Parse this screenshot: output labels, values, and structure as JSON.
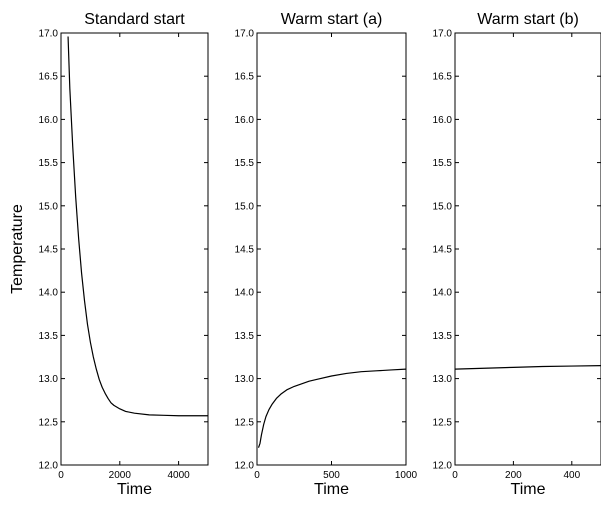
{
  "figure": {
    "ylabel": "Temperature"
  },
  "chart_data": [
    {
      "type": "line",
      "title": "Standard start",
      "xlabel": "Time",
      "ylabel": "Temperature",
      "xlim": [
        0,
        5000
      ],
      "ylim": [
        12.0,
        17.0
      ],
      "xticks": [
        0,
        2000,
        4000
      ],
      "xtick_labels": [
        "0",
        "2000",
        "4000"
      ],
      "yticks": [
        12.0,
        12.5,
        13.0,
        13.5,
        14.0,
        14.5,
        15.0,
        15.5,
        16.0,
        16.5,
        17.0
      ],
      "ytick_labels": [
        "12.0",
        "12.5",
        "13.0",
        "13.5",
        "14.0",
        "14.5",
        "15.0",
        "15.5",
        "16.0",
        "16.5",
        "17.0"
      ],
      "grid": false,
      "series": [
        {
          "color": "#000000",
          "x": [
            240,
            300,
            400,
            500,
            600,
            700,
            800,
            900,
            1000,
            1100,
            1200,
            1300,
            1400,
            1500,
            1600,
            1700,
            1800,
            2000,
            2200,
            2500,
            3000,
            3500,
            4000,
            4500,
            5000
          ],
          "y": [
            16.96,
            16.36,
            15.68,
            15.1,
            14.62,
            14.22,
            13.9,
            13.63,
            13.42,
            13.25,
            13.11,
            12.99,
            12.9,
            12.83,
            12.77,
            12.72,
            12.69,
            12.65,
            12.62,
            12.6,
            12.58,
            12.575,
            12.57,
            12.57,
            12.57
          ]
        }
      ]
    },
    {
      "type": "line",
      "title": "Warm start (a)",
      "xlabel": "Time",
      "ylabel": "",
      "xlim": [
        0,
        1000
      ],
      "ylim": [
        12.0,
        17.0
      ],
      "xticks": [
        0,
        500,
        1000
      ],
      "xtick_labels": [
        "0",
        "500",
        "1000"
      ],
      "yticks": [
        12.0,
        12.5,
        13.0,
        13.5,
        14.0,
        14.5,
        15.0,
        15.5,
        16.0,
        16.5,
        17.0
      ],
      "ytick_labels": [
        "12.0",
        "12.5",
        "13.0",
        "13.5",
        "14.0",
        "14.5",
        "15.0",
        "15.5",
        "16.0",
        "16.5",
        "17.0"
      ],
      "grid": false,
      "series": [
        {
          "color": "#000000",
          "x": [
            10,
            20,
            30,
            45,
            60,
            80,
            100,
            130,
            160,
            200,
            250,
            300,
            350,
            400,
            500,
            600,
            700,
            800,
            900,
            1000
          ],
          "y": [
            12.2,
            12.25,
            12.35,
            12.47,
            12.56,
            12.64,
            12.7,
            12.77,
            12.82,
            12.87,
            12.91,
            12.94,
            12.97,
            12.99,
            13.03,
            13.06,
            13.08,
            13.09,
            13.1,
            13.11
          ]
        }
      ]
    },
    {
      "type": "line",
      "title": "Warm start (b)",
      "xlabel": "Time",
      "ylabel": "",
      "xlim": [
        0,
        500
      ],
      "ylim": [
        12.0,
        17.0
      ],
      "xticks": [
        0,
        200,
        400
      ],
      "xtick_labels": [
        "0",
        "200",
        "400"
      ],
      "yticks": [
        12.0,
        12.5,
        13.0,
        13.5,
        14.0,
        14.5,
        15.0,
        15.5,
        16.0,
        16.5,
        17.0
      ],
      "ytick_labels": [
        "12.0",
        "12.5",
        "13.0",
        "13.5",
        "14.0",
        "14.5",
        "15.0",
        "15.5",
        "16.0",
        "16.5",
        "17.0"
      ],
      "grid": false,
      "series": [
        {
          "color": "#000000",
          "x": [
            0,
            100,
            200,
            300,
            400,
            500
          ],
          "y": [
            13.11,
            13.12,
            13.13,
            13.14,
            13.145,
            13.15
          ]
        }
      ]
    }
  ]
}
